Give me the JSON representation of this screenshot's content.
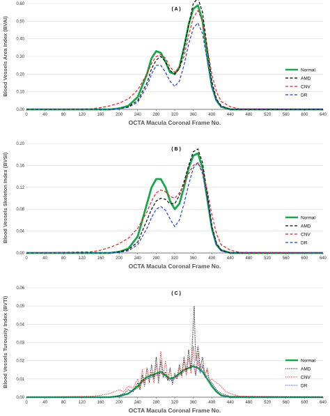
{
  "chart_data": [
    {
      "type": "line",
      "title": "( A )",
      "xlabel": "OCTA Macula Coronal Frame No.",
      "ylabel": "Blood Vessels Area Index (BVAI)",
      "xlim": [
        0,
        640
      ],
      "ylim": [
        0,
        0.6
      ],
      "xticks": [
        0,
        40,
        80,
        120,
        160,
        200,
        240,
        280,
        320,
        360,
        400,
        440,
        480,
        520,
        560,
        600,
        640
      ],
      "yticks": [
        0,
        0.1,
        0.2,
        0.3,
        0.4,
        0.5,
        0.6
      ],
      "ytick_labels": [
        "0.00",
        "0.10",
        "0.20",
        "0.30",
        "0.40",
        "0.50",
        "0.60"
      ],
      "legend": "right",
      "series": [
        {
          "name": "Normal",
          "color": "#1aa54a",
          "style": "solid",
          "width": 2.8,
          "x": [
            0,
            180,
            200,
            220,
            240,
            260,
            270,
            280,
            290,
            300,
            310,
            320,
            330,
            340,
            350,
            360,
            370,
            380,
            390,
            400,
            410,
            420,
            440,
            640
          ],
          "y": [
            0,
            0,
            0.005,
            0.02,
            0.07,
            0.2,
            0.29,
            0.33,
            0.32,
            0.27,
            0.21,
            0.2,
            0.24,
            0.35,
            0.48,
            0.57,
            0.59,
            0.5,
            0.3,
            0.13,
            0.05,
            0.015,
            0,
            0
          ]
        },
        {
          "name": "AMD",
          "color": "#000000",
          "style": "dash",
          "width": 1.2,
          "x": [
            0,
            180,
            200,
            220,
            240,
            260,
            270,
            280,
            290,
            300,
            310,
            320,
            330,
            340,
            350,
            360,
            370,
            380,
            390,
            400,
            410,
            420,
            440,
            640
          ],
          "y": [
            0,
            0,
            0.003,
            0.015,
            0.05,
            0.15,
            0.23,
            0.28,
            0.3,
            0.27,
            0.22,
            0.2,
            0.23,
            0.34,
            0.48,
            0.6,
            0.63,
            0.55,
            0.35,
            0.16,
            0.06,
            0.02,
            0,
            0
          ]
        },
        {
          "name": "CNV",
          "color": "#e02020",
          "style": "dash",
          "width": 1.2,
          "x": [
            0,
            140,
            160,
            180,
            200,
            220,
            240,
            260,
            270,
            280,
            290,
            300,
            310,
            320,
            330,
            340,
            350,
            360,
            370,
            380,
            390,
            400,
            410,
            420,
            440,
            460,
            640
          ],
          "y": [
            0,
            0.003,
            0.01,
            0.02,
            0.035,
            0.06,
            0.11,
            0.2,
            0.26,
            0.3,
            0.31,
            0.29,
            0.24,
            0.21,
            0.23,
            0.3,
            0.42,
            0.52,
            0.56,
            0.5,
            0.35,
            0.2,
            0.1,
            0.045,
            0.015,
            0.003,
            0
          ]
        },
        {
          "name": "DR",
          "color": "#1f3fd0",
          "style": "dash",
          "width": 1.2,
          "x": [
            0,
            180,
            200,
            220,
            240,
            260,
            270,
            280,
            290,
            300,
            310,
            320,
            330,
            340,
            350,
            360,
            370,
            380,
            390,
            400,
            410,
            420,
            440,
            640
          ],
          "y": [
            0,
            0,
            0.003,
            0.012,
            0.04,
            0.13,
            0.2,
            0.25,
            0.25,
            0.21,
            0.16,
            0.13,
            0.16,
            0.25,
            0.37,
            0.46,
            0.49,
            0.43,
            0.28,
            0.13,
            0.05,
            0.015,
            0,
            0
          ]
        }
      ]
    },
    {
      "type": "line",
      "title": "( B )",
      "xlabel": "OCTA Macula Coronal Frame No.",
      "ylabel": "Blood Vessels Skeleton Index (BVSI)",
      "xlim": [
        0,
        640
      ],
      "ylim": [
        0,
        0.2
      ],
      "xticks": [
        0,
        40,
        80,
        120,
        160,
        200,
        240,
        280,
        320,
        360,
        400,
        440,
        480,
        520,
        560,
        600,
        640
      ],
      "yticks": [
        0,
        0.04,
        0.08,
        0.12,
        0.16,
        0.2
      ],
      "ytick_labels": [
        "0.00",
        "0.04",
        "0.08",
        "0.12",
        "0.16",
        "0.20"
      ],
      "legend": "right",
      "series": [
        {
          "name": "Normal",
          "color": "#1aa54a",
          "style": "solid",
          "width": 2.8,
          "x": [
            0,
            180,
            200,
            220,
            240,
            260,
            270,
            280,
            290,
            300,
            310,
            320,
            330,
            340,
            350,
            360,
            370,
            380,
            390,
            400,
            410,
            420,
            440,
            640
          ],
          "y": [
            0,
            0,
            0.002,
            0.008,
            0.03,
            0.09,
            0.12,
            0.135,
            0.135,
            0.12,
            0.095,
            0.08,
            0.09,
            0.12,
            0.155,
            0.178,
            0.182,
            0.155,
            0.1,
            0.045,
            0.015,
            0.005,
            0,
            0
          ]
        },
        {
          "name": "AMD",
          "color": "#000000",
          "style": "dash",
          "width": 1.2,
          "x": [
            0,
            180,
            200,
            220,
            240,
            260,
            270,
            280,
            290,
            300,
            310,
            320,
            330,
            340,
            350,
            360,
            370,
            380,
            390,
            400,
            410,
            420,
            440,
            640
          ],
          "y": [
            0,
            0,
            0.002,
            0.006,
            0.02,
            0.06,
            0.08,
            0.095,
            0.1,
            0.098,
            0.09,
            0.09,
            0.105,
            0.13,
            0.16,
            0.185,
            0.19,
            0.165,
            0.11,
            0.05,
            0.018,
            0.005,
            0,
            0
          ]
        },
        {
          "name": "CNV",
          "color": "#e02020",
          "style": "dash",
          "width": 1.2,
          "x": [
            0,
            140,
            160,
            180,
            200,
            220,
            240,
            260,
            270,
            280,
            290,
            300,
            310,
            320,
            330,
            340,
            350,
            360,
            370,
            380,
            390,
            400,
            410,
            420,
            440,
            460,
            640
          ],
          "y": [
            0,
            0.002,
            0.005,
            0.01,
            0.017,
            0.027,
            0.045,
            0.075,
            0.095,
            0.11,
            0.115,
            0.112,
            0.103,
            0.1,
            0.11,
            0.125,
            0.145,
            0.16,
            0.165,
            0.15,
            0.115,
            0.07,
            0.035,
            0.015,
            0.005,
            0.001,
            0
          ]
        },
        {
          "name": "DR",
          "color": "#1f3fd0",
          "style": "dash",
          "width": 1.2,
          "x": [
            0,
            180,
            200,
            220,
            240,
            260,
            270,
            280,
            290,
            300,
            310,
            320,
            330,
            340,
            350,
            360,
            370,
            380,
            390,
            400,
            410,
            420,
            440,
            640
          ],
          "y": [
            0,
            0,
            0.001,
            0.004,
            0.015,
            0.045,
            0.065,
            0.08,
            0.085,
            0.078,
            0.062,
            0.048,
            0.06,
            0.09,
            0.125,
            0.155,
            0.165,
            0.145,
            0.1,
            0.045,
            0.015,
            0.004,
            0,
            0
          ]
        }
      ]
    },
    {
      "type": "line",
      "title": "( C )",
      "xlabel": "OCTA Macula Coronal Frame No.",
      "ylabel": "Blood Vessels Turousity Index (BVTI)",
      "xlim": [
        0,
        640
      ],
      "ylim": [
        0,
        0.06
      ],
      "xticks": [
        0,
        40,
        80,
        120,
        160,
        200,
        240,
        280,
        320,
        360,
        400,
        440,
        480,
        520,
        560,
        600,
        640
      ],
      "yticks": [
        0,
        0.01,
        0.02,
        0.03,
        0.04,
        0.05,
        0.06
      ],
      "ytick_labels": [
        "0.00",
        "0.01",
        "0.02",
        "0.03",
        "0.04",
        "0.05",
        "0.06"
      ],
      "legend": "right",
      "series": [
        {
          "name": "Normal",
          "color": "#1aa54a",
          "style": "solid",
          "width": 2.4,
          "x": [
            0,
            180,
            200,
            220,
            240,
            250,
            260,
            270,
            280,
            290,
            300,
            310,
            320,
            330,
            340,
            350,
            360,
            370,
            380,
            390,
            400,
            410,
            420,
            440,
            640
          ],
          "y": [
            0,
            0,
            0.0005,
            0.002,
            0.006,
            0.009,
            0.011,
            0.012,
            0.013,
            0.014,
            0.012,
            0.01,
            0.011,
            0.013,
            0.015,
            0.016,
            0.017,
            0.016,
            0.014,
            0.01,
            0.006,
            0.003,
            0.001,
            0,
            0
          ]
        },
        {
          "name": "AMD",
          "color": "#000000",
          "style": "dot",
          "width": 1.0,
          "x": [
            0,
            180,
            200,
            210,
            220,
            230,
            240,
            245,
            250,
            255,
            260,
            265,
            270,
            275,
            280,
            285,
            290,
            295,
            300,
            305,
            310,
            315,
            320,
            325,
            330,
            335,
            340,
            345,
            350,
            355,
            360,
            362,
            364,
            366,
            370,
            375,
            380,
            385,
            390,
            395,
            400,
            410,
            420,
            440,
            640
          ],
          "y": [
            0,
            0,
            0.001,
            0.002,
            0.004,
            0.003,
            0.008,
            0.004,
            0.012,
            0.006,
            0.016,
            0.008,
            0.018,
            0.01,
            0.022,
            0.008,
            0.02,
            0.011,
            0.014,
            0.009,
            0.016,
            0.007,
            0.013,
            0.01,
            0.018,
            0.012,
            0.022,
            0.014,
            0.026,
            0.015,
            0.04,
            0.05,
            0.03,
            0.02,
            0.028,
            0.016,
            0.022,
            0.012,
            0.015,
            0.009,
            0.008,
            0.004,
            0.002,
            0.0005,
            0
          ]
        },
        {
          "name": "CNV",
          "color": "#e02020",
          "style": "dot",
          "width": 1.0,
          "x": [
            0,
            140,
            160,
            180,
            200,
            210,
            220,
            230,
            240,
            245,
            250,
            255,
            260,
            265,
            270,
            275,
            280,
            285,
            290,
            295,
            300,
            305,
            310,
            315,
            320,
            325,
            330,
            335,
            340,
            345,
            350,
            355,
            360,
            365,
            370,
            375,
            380,
            385,
            390,
            395,
            400,
            410,
            420,
            430,
            440,
            460,
            640
          ],
          "y": [
            0,
            0.0005,
            0.001,
            0.002,
            0.004,
            0.003,
            0.006,
            0.005,
            0.01,
            0.005,
            0.015,
            0.007,
            0.016,
            0.009,
            0.014,
            0.008,
            0.018,
            0.01,
            0.025,
            0.012,
            0.02,
            0.01,
            0.015,
            0.009,
            0.012,
            0.01,
            0.016,
            0.011,
            0.02,
            0.012,
            0.022,
            0.013,
            0.028,
            0.012,
            0.024,
            0.014,
            0.018,
            0.012,
            0.016,
            0.009,
            0.01,
            0.008,
            0.006,
            0.003,
            0.002,
            0.0005,
            0
          ]
        },
        {
          "name": "DR",
          "color": "#1f3fd0",
          "style": "dot",
          "width": 1.0,
          "x": [
            0,
            180,
            200,
            220,
            240,
            250,
            260,
            270,
            280,
            290,
            300,
            310,
            320,
            330,
            340,
            350,
            360,
            365,
            370,
            375,
            380,
            385,
            390,
            400,
            410,
            420,
            440,
            640
          ],
          "y": [
            0,
            0,
            0.0005,
            0.002,
            0.005,
            0.008,
            0.01,
            0.011,
            0.012,
            0.013,
            0.011,
            0.009,
            0.01,
            0.012,
            0.014,
            0.016,
            0.018,
            0.012,
            0.02,
            0.013,
            0.017,
            0.011,
            0.012,
            0.007,
            0.003,
            0.001,
            0,
            0
          ]
        }
      ]
    }
  ]
}
